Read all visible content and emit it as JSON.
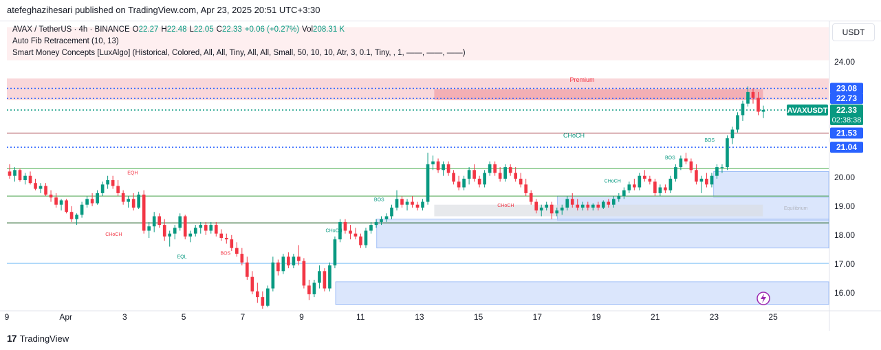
{
  "header": {
    "publisher_line": "atefeghazihesari published on TradingView.com, Apr 23, 2025 20:51 UTC+3:30"
  },
  "legend": {
    "symbol": "AVAX / TetherUS · 4h · BINANCE",
    "o_label": "O",
    "o_value": "22.27",
    "h_label": "H",
    "h_value": "22.48",
    "l_label": "L",
    "l_value": "22.05",
    "c_label": "C",
    "c_value": "22.33",
    "change": "+0.06 (+0.27%)",
    "vol_label": "Vol",
    "vol_value": "208.31 K",
    "indicator_1": "Auto Fib Retracement (10, 13)",
    "indicator_2": "Smart Money Concepts [LuxAlgo] (Historical, Colored, All, All, Tiny, All, All, Small, 50, 10, 10, Atr, 3, 0.1, Tiny, , 1, ——, ——, ——)"
  },
  "currency_button": "USDT",
  "footer": {
    "brand": "TradingView",
    "logo": "17"
  },
  "colors": {
    "up": "#089981",
    "down": "#f23645",
    "blue": "#2962ff",
    "axis_text": "#131722"
  },
  "chart_data": {
    "type": "candlestick",
    "y_range": [
      15.4,
      25.4
    ],
    "y_ticks": [
      16.0,
      17.0,
      18.0,
      19.0,
      20.0,
      24.0
    ],
    "x_tick_labels": [
      "9",
      "Apr",
      "3",
      "5",
      "7",
      "9",
      "11",
      "13",
      "15",
      "17",
      "19",
      "21",
      "23",
      "25"
    ],
    "price_labels": [
      {
        "value": 23.08,
        "text": "23.08",
        "color": "#2962ff"
      },
      {
        "value": 22.73,
        "text": "22.73",
        "color": "#2962ff"
      },
      {
        "value": 22.33,
        "text": "22.33",
        "sub": "02:38:38",
        "tag": "AVAXUSDT",
        "color": "#089981"
      },
      {
        "value": 21.53,
        "text": "21.53",
        "color": "#2962ff"
      },
      {
        "value": 21.04,
        "text": "21.04",
        "color": "#2962ff"
      }
    ],
    "horizontal_levels": [
      {
        "value": 23.08,
        "style": "dotted",
        "color": "#2962ff"
      },
      {
        "value": 22.73,
        "style": "dotted",
        "color": "#2962ff"
      },
      {
        "value": 22.33,
        "style": "dotted",
        "color": "#089981"
      },
      {
        "value": 21.53,
        "style": "solid",
        "color": "#9c2a33"
      },
      {
        "value": 21.04,
        "style": "dotted",
        "color": "#2962ff"
      },
      {
        "value": 20.3,
        "style": "solid",
        "color": "#4caf50"
      },
      {
        "value": 19.35,
        "style": "solid",
        "color": "#43a047"
      },
      {
        "value": 18.42,
        "style": "solid",
        "color": "#1b5e20"
      },
      {
        "value": 17.02,
        "style": "solid",
        "color": "#64b5f6"
      }
    ],
    "zones": [
      {
        "name": "premium",
        "y0": 23.42,
        "y1": 22.68,
        "x0": 0.0,
        "x1": 1.0,
        "color": "#f6c2c6"
      },
      {
        "name": "premium-fvg",
        "y0": 23.05,
        "y1": 22.68,
        "x0": 0.52,
        "x1": 0.92,
        "color": "#ef9aa2"
      },
      {
        "name": "top-zone",
        "y0": 25.2,
        "y1": 24.05,
        "x0": 0.0,
        "x1": 1.0,
        "color": "#fde6e8"
      },
      {
        "name": "demand-1",
        "y0": 20.2,
        "y1": 19.3,
        "x0": 0.86,
        "x1": 1.0,
        "color": "#c8d9fb"
      },
      {
        "name": "demand-2",
        "y0": 19.35,
        "y1": 18.5,
        "x0": 0.67,
        "x1": 1.0,
        "color": "#c8d9fb"
      },
      {
        "name": "demand-3",
        "y0": 18.55,
        "y1": 17.55,
        "x0": 0.45,
        "x1": 1.0,
        "color": "#c8d9fb"
      },
      {
        "name": "demand-4",
        "y0": 16.38,
        "y1": 15.6,
        "x0": 0.4,
        "x1": 1.0,
        "color": "#c8d9fb"
      },
      {
        "name": "equilibrium",
        "y0": 19.05,
        "y1": 18.65,
        "x0": 0.52,
        "x1": 0.92,
        "color": "#dadde2"
      }
    ],
    "annotations": [
      {
        "text": "Premium",
        "x": 0.7,
        "y": 23.3,
        "color": "#f23645"
      },
      {
        "text": "CHoCH",
        "x": 0.69,
        "y": 21.38,
        "color": "#089981"
      },
      {
        "text": "Equilibrium",
        "x": 0.96,
        "y": 18.88,
        "color": "#b2b5be"
      },
      {
        "text": "EQH",
        "x": 0.153,
        "y": 20.1,
        "color": "#f23645"
      },
      {
        "text": "CHoCH",
        "x": 0.13,
        "y": 17.97,
        "color": "#f23645"
      },
      {
        "text": "EQL",
        "x": 0.213,
        "y": 17.2,
        "color": "#089981"
      },
      {
        "text": "BOS",
        "x": 0.266,
        "y": 17.32,
        "color": "#f23645"
      },
      {
        "text": "CHoCH",
        "x": 0.398,
        "y": 18.1,
        "color": "#089981"
      },
      {
        "text": "BOS",
        "x": 0.453,
        "y": 19.17,
        "color": "#089981"
      },
      {
        "text": "CHoCH",
        "x": 0.607,
        "y": 18.97,
        "color": "#f23645"
      },
      {
        "text": "CHoCH",
        "x": 0.737,
        "y": 19.82,
        "color": "#089981"
      },
      {
        "text": "BOS",
        "x": 0.807,
        "y": 20.63,
        "color": "#089981"
      },
      {
        "text": "BOS",
        "x": 0.855,
        "y": 21.23,
        "color": "#089981"
      }
    ],
    "candles": [
      [
        20.2,
        20.45,
        19.95,
        20.05
      ],
      [
        20.05,
        20.35,
        19.85,
        20.25
      ],
      [
        20.25,
        20.3,
        19.85,
        19.9
      ],
      [
        19.9,
        20.15,
        19.75,
        20.05
      ],
      [
        20.05,
        20.2,
        19.75,
        19.8
      ],
      [
        19.8,
        19.95,
        19.55,
        19.6
      ],
      [
        19.6,
        19.8,
        19.45,
        19.7
      ],
      [
        19.7,
        19.8,
        19.35,
        19.4
      ],
      [
        19.4,
        19.55,
        19.15,
        19.3
      ],
      [
        19.3,
        19.45,
        18.95,
        19.05
      ],
      [
        19.05,
        19.25,
        18.85,
        19.2
      ],
      [
        19.2,
        19.25,
        18.75,
        18.8
      ],
      [
        18.8,
        19.0,
        18.45,
        18.55
      ],
      [
        18.55,
        18.75,
        18.35,
        18.7
      ],
      [
        18.7,
        19.15,
        18.6,
        19.05
      ],
      [
        19.05,
        19.35,
        18.95,
        19.25
      ],
      [
        19.25,
        19.45,
        19.0,
        19.1
      ],
      [
        19.1,
        19.55,
        19.05,
        19.45
      ],
      [
        19.45,
        19.85,
        19.35,
        19.75
      ],
      [
        19.75,
        20.05,
        19.6,
        19.9
      ],
      [
        19.9,
        20.05,
        19.6,
        19.7
      ],
      [
        19.7,
        19.9,
        19.35,
        19.45
      ],
      [
        19.45,
        19.55,
        19.05,
        19.15
      ],
      [
        19.15,
        19.35,
        18.95,
        19.25
      ],
      [
        19.25,
        19.45,
        18.85,
        18.95
      ],
      [
        18.95,
        19.5,
        18.9,
        19.4
      ],
      [
        19.4,
        19.55,
        18.05,
        18.15
      ],
      [
        18.15,
        18.45,
        17.9,
        18.3
      ],
      [
        18.3,
        18.8,
        18.1,
        18.65
      ],
      [
        18.65,
        18.75,
        18.25,
        18.35
      ],
      [
        18.35,
        18.55,
        17.8,
        17.95
      ],
      [
        17.95,
        18.15,
        17.6,
        18.05
      ],
      [
        18.05,
        18.35,
        17.85,
        18.25
      ],
      [
        18.25,
        18.75,
        18.15,
        18.65
      ],
      [
        18.65,
        18.7,
        17.85,
        17.95
      ],
      [
        17.95,
        18.15,
        17.75,
        18.05
      ],
      [
        18.05,
        18.35,
        17.95,
        18.25
      ],
      [
        18.25,
        18.45,
        18.05,
        18.35
      ],
      [
        18.35,
        18.45,
        18.0,
        18.15
      ],
      [
        18.15,
        18.45,
        18.05,
        18.35
      ],
      [
        18.35,
        18.45,
        17.95,
        18.05
      ],
      [
        18.05,
        18.2,
        17.8,
        17.9
      ],
      [
        17.9,
        18.05,
        17.7,
        17.85
      ],
      [
        17.85,
        18.0,
        17.45,
        17.55
      ],
      [
        17.55,
        17.75,
        17.25,
        17.35
      ],
      [
        17.35,
        17.55,
        16.95,
        17.05
      ],
      [
        17.05,
        17.25,
        16.45,
        16.55
      ],
      [
        16.55,
        16.75,
        15.95,
        16.05
      ],
      [
        16.05,
        16.35,
        15.65,
        15.85
      ],
      [
        15.85,
        16.05,
        15.45,
        15.55
      ],
      [
        15.55,
        16.25,
        15.5,
        16.15
      ],
      [
        16.15,
        17.25,
        16.05,
        17.05
      ],
      [
        17.05,
        17.15,
        16.6,
        16.75
      ],
      [
        16.75,
        17.35,
        16.65,
        17.25
      ],
      [
        17.25,
        17.4,
        16.85,
        16.95
      ],
      [
        16.95,
        17.35,
        16.85,
        17.25
      ],
      [
        17.25,
        17.65,
        16.95,
        17.1
      ],
      [
        17.1,
        17.2,
        16.15,
        16.25
      ],
      [
        16.25,
        16.45,
        15.75,
        15.95
      ],
      [
        15.95,
        16.45,
        15.85,
        16.35
      ],
      [
        16.35,
        16.95,
        16.15,
        16.75
      ],
      [
        16.75,
        16.85,
        16.05,
        16.15
      ],
      [
        16.15,
        17.05,
        16.05,
        16.95
      ],
      [
        16.95,
        17.95,
        16.85,
        17.85
      ],
      [
        17.85,
        18.55,
        17.75,
        18.45
      ],
      [
        18.45,
        18.55,
        18.05,
        18.15
      ],
      [
        18.15,
        18.35,
        17.85,
        18.05
      ],
      [
        18.05,
        18.25,
        17.85,
        17.95
      ],
      [
        17.95,
        18.05,
        17.55,
        17.65
      ],
      [
        17.65,
        18.25,
        17.55,
        18.15
      ],
      [
        18.15,
        18.45,
        18.05,
        18.35
      ],
      [
        18.35,
        18.55,
        18.25,
        18.45
      ],
      [
        18.45,
        18.65,
        18.35,
        18.55
      ],
      [
        18.55,
        18.75,
        18.45,
        18.65
      ],
      [
        18.65,
        19.05,
        18.55,
        18.95
      ],
      [
        18.95,
        19.55,
        18.85,
        19.25
      ],
      [
        19.25,
        19.35,
        18.95,
        19.05
      ],
      [
        19.05,
        19.25,
        18.85,
        19.15
      ],
      [
        19.15,
        19.35,
        18.95,
        19.05
      ],
      [
        19.05,
        19.15,
        18.85,
        18.95
      ],
      [
        18.95,
        19.25,
        18.85,
        19.15
      ],
      [
        19.15,
        20.85,
        19.05,
        20.45
      ],
      [
        20.45,
        20.75,
        20.25,
        20.55
      ],
      [
        20.55,
        20.65,
        20.15,
        20.25
      ],
      [
        20.25,
        20.55,
        20.05,
        20.45
      ],
      [
        20.45,
        20.55,
        20.05,
        20.15
      ],
      [
        20.15,
        20.25,
        19.75,
        19.85
      ],
      [
        19.85,
        20.05,
        19.55,
        19.65
      ],
      [
        19.65,
        20.05,
        19.55,
        19.95
      ],
      [
        19.95,
        20.35,
        19.75,
        20.25
      ],
      [
        20.25,
        20.45,
        19.85,
        19.95
      ],
      [
        19.95,
        20.05,
        19.65,
        19.75
      ],
      [
        19.75,
        20.25,
        19.65,
        20.15
      ],
      [
        20.15,
        20.55,
        20.05,
        20.45
      ],
      [
        20.45,
        20.55,
        20.05,
        20.15
      ],
      [
        20.15,
        20.35,
        19.85,
        19.95
      ],
      [
        19.95,
        20.45,
        19.85,
        20.35
      ],
      [
        20.35,
        20.45,
        20.05,
        20.15
      ],
      [
        20.15,
        20.35,
        19.85,
        19.95
      ],
      [
        19.95,
        20.15,
        19.65,
        19.75
      ],
      [
        19.75,
        19.95,
        19.35,
        19.45
      ],
      [
        19.45,
        19.55,
        19.05,
        19.15
      ],
      [
        19.15,
        19.25,
        18.75,
        18.85
      ],
      [
        18.85,
        19.05,
        18.65,
        18.95
      ],
      [
        18.95,
        19.15,
        18.85,
        19.05
      ],
      [
        19.05,
        19.15,
        18.55,
        18.75
      ],
      [
        18.75,
        18.95,
        18.65,
        18.85
      ],
      [
        18.85,
        19.05,
        18.7,
        18.95
      ],
      [
        18.95,
        19.35,
        18.85,
        19.25
      ],
      [
        19.25,
        19.45,
        18.95,
        19.05
      ],
      [
        19.05,
        19.25,
        18.85,
        18.95
      ],
      [
        18.95,
        19.15,
        18.85,
        19.05
      ],
      [
        19.05,
        19.15,
        18.85,
        18.95
      ],
      [
        18.95,
        19.1,
        18.85,
        19.05
      ],
      [
        19.05,
        19.15,
        18.85,
        18.95
      ],
      [
        18.95,
        19.2,
        18.9,
        19.15
      ],
      [
        19.15,
        19.25,
        18.95,
        19.05
      ],
      [
        19.05,
        19.35,
        18.95,
        19.25
      ],
      [
        19.25,
        19.45,
        19.15,
        19.35
      ],
      [
        19.35,
        19.65,
        19.25,
        19.55
      ],
      [
        19.55,
        19.85,
        19.45,
        19.75
      ],
      [
        19.75,
        19.95,
        19.55,
        19.65
      ],
      [
        19.65,
        20.15,
        19.55,
        20.05
      ],
      [
        20.05,
        20.25,
        19.85,
        19.95
      ],
      [
        19.95,
        20.05,
        19.75,
        19.85
      ],
      [
        19.85,
        19.95,
        19.35,
        19.45
      ],
      [
        19.45,
        19.75,
        19.35,
        19.65
      ],
      [
        19.65,
        19.75,
        19.45,
        19.55
      ],
      [
        19.55,
        20.05,
        19.45,
        19.95
      ],
      [
        19.95,
        20.45,
        19.85,
        20.35
      ],
      [
        20.35,
        20.75,
        20.25,
        20.65
      ],
      [
        20.65,
        20.85,
        20.45,
        20.55
      ],
      [
        20.55,
        20.65,
        20.15,
        20.25
      ],
      [
        20.25,
        20.45,
        19.75,
        19.85
      ],
      [
        19.85,
        20.05,
        19.45,
        19.95
      ],
      [
        19.95,
        20.15,
        19.65,
        19.75
      ],
      [
        19.75,
        20.15,
        19.65,
        20.05
      ],
      [
        20.05,
        20.45,
        19.95,
        20.35
      ],
      [
        20.35,
        20.45,
        20.15,
        20.35
      ],
      [
        20.35,
        21.45,
        20.25,
        21.35
      ],
      [
        21.35,
        21.75,
        21.15,
        21.65
      ],
      [
        21.65,
        22.25,
        21.55,
        22.15
      ],
      [
        22.15,
        22.65,
        21.95,
        22.55
      ],
      [
        22.55,
        23.15,
        22.45,
        22.95
      ],
      [
        22.95,
        23.08,
        22.55,
        22.75
      ],
      [
        22.75,
        22.95,
        22.15,
        22.27
      ],
      [
        22.27,
        22.48,
        22.05,
        22.33
      ]
    ]
  }
}
